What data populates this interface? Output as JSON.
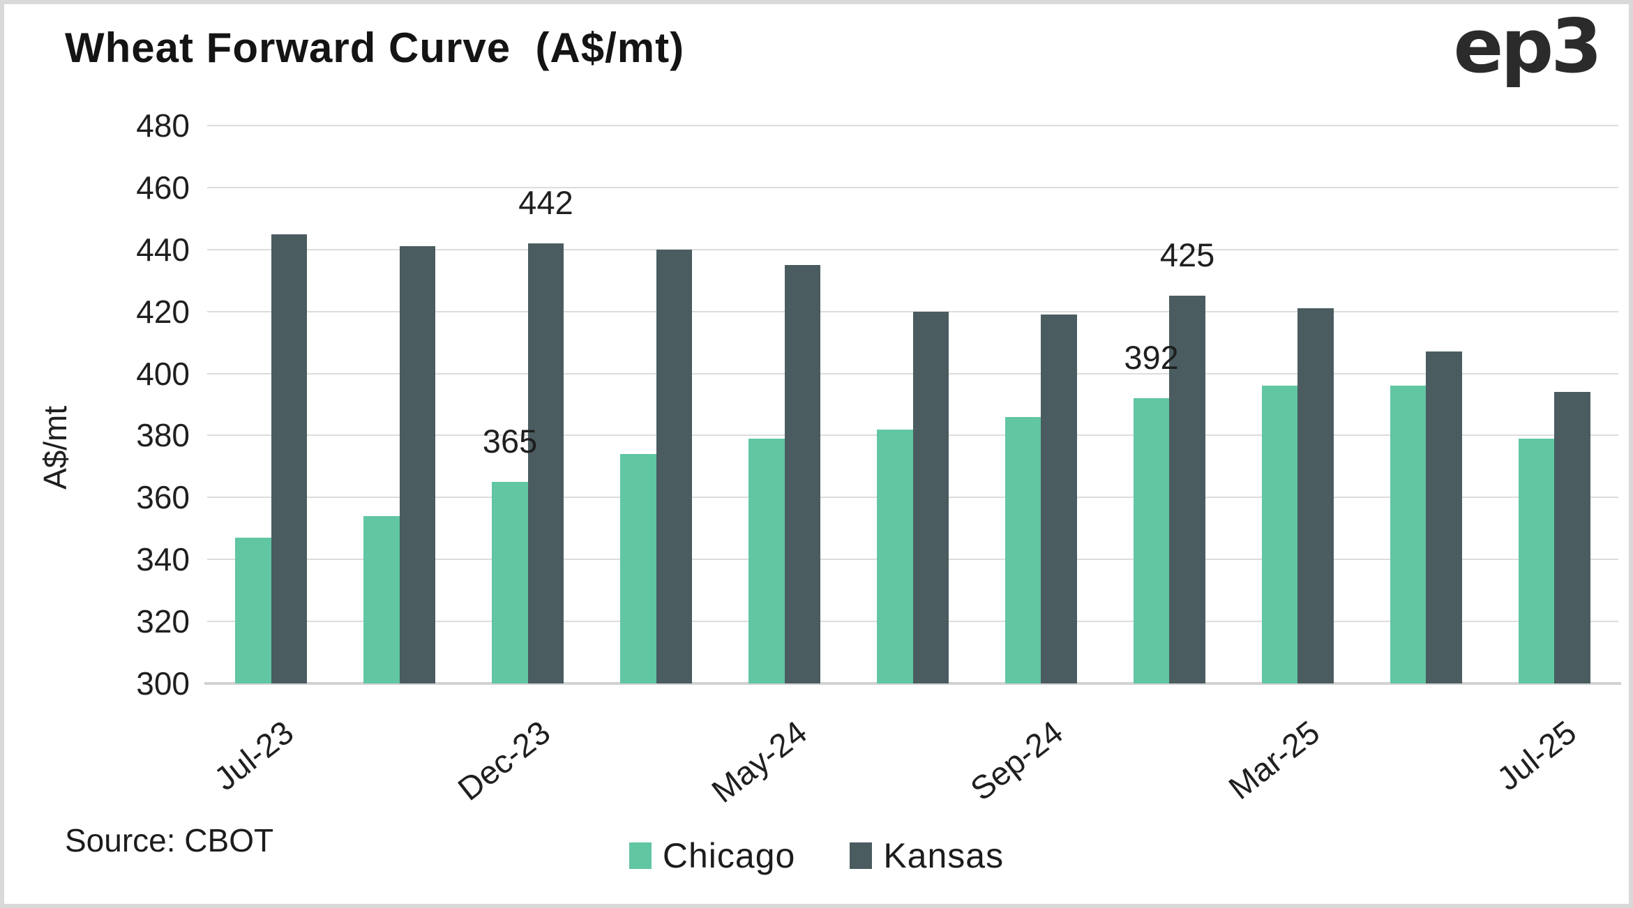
{
  "page": {
    "brand": "ep3",
    "source_note": "Source: CBOT"
  },
  "chart_data": {
    "type": "bar",
    "title": "Wheat Forward Curve  (A$/mt)",
    "ylabel": "A$/mt",
    "ylim": [
      300,
      480
    ],
    "ytick_step": 20,
    "grid": true,
    "legend_position": "bottom",
    "group_count": 11,
    "x_tick_labels": [
      {
        "index": 0,
        "label": "Jul-23"
      },
      {
        "index": 2,
        "label": "Dec-23"
      },
      {
        "index": 4,
        "label": "May-24"
      },
      {
        "index": 6,
        "label": "Sep-24"
      },
      {
        "index": 8,
        "label": "Mar-25"
      },
      {
        "index": 10,
        "label": "Jul-25"
      }
    ],
    "series": [
      {
        "name": "Chicago",
        "color": "#61C6A2",
        "values": [
          347,
          354,
          365,
          374,
          379,
          382,
          386,
          392,
          396,
          396,
          379
        ]
      },
      {
        "name": "Kansas",
        "color": "#4A5C60",
        "values": [
          445,
          441,
          442,
          440,
          435,
          420,
          419,
          425,
          421,
          407,
          394
        ]
      }
    ],
    "data_labels": [
      {
        "series": 0,
        "index": 2,
        "text": "365"
      },
      {
        "series": 1,
        "index": 2,
        "text": "442"
      },
      {
        "series": 0,
        "index": 7,
        "text": "392"
      },
      {
        "series": 1,
        "index": 7,
        "text": "425"
      }
    ]
  }
}
